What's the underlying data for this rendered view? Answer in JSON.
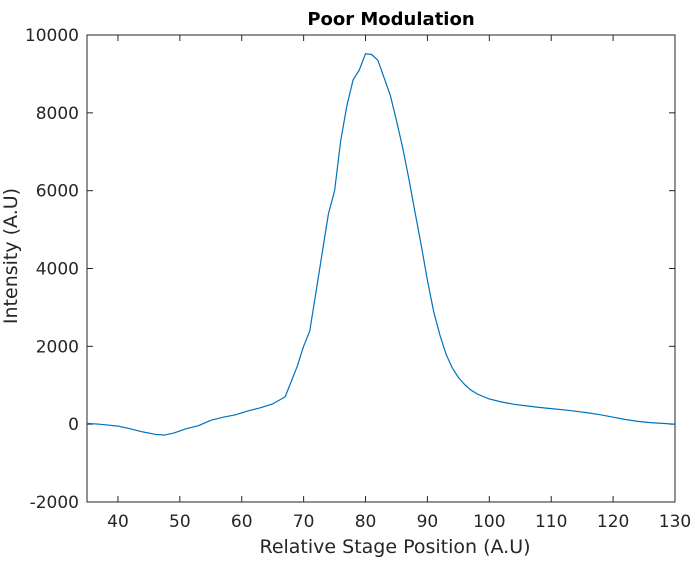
{
  "chart_data": {
    "type": "line",
    "title": "Poor Modulation",
    "xlabel": "Relative Stage Position (A.U)",
    "ylabel": "Intensity (A.U)",
    "xlim": [
      35,
      130
    ],
    "ylim": [
      -2000,
      10000
    ],
    "xticks": [
      "40",
      "50",
      "60",
      "70",
      "80",
      "90",
      "100",
      "110",
      "120",
      "130"
    ],
    "yticks": [
      "-2000",
      "0",
      "2000",
      "4000",
      "6000",
      "8000",
      "10000"
    ],
    "grid": false,
    "legend": "none",
    "series": [
      {
        "color": "#0072BD",
        "x": [
          35,
          37,
          40,
          42,
          44,
          46,
          47.5,
          49,
          51,
          53,
          55,
          57,
          59,
          61,
          63,
          65,
          67,
          68,
          69,
          70,
          71,
          72,
          73,
          74,
          75,
          76,
          77,
          78,
          79,
          80,
          81,
          82,
          83,
          84,
          85,
          86,
          87,
          88,
          89,
          90,
          91,
          92,
          93,
          94,
          95,
          96,
          97,
          98,
          99,
          100,
          102,
          104,
          106,
          108,
          110,
          112,
          114,
          116,
          118,
          120,
          122,
          124,
          126,
          128,
          130
        ],
        "y": [
          20,
          0,
          -50,
          -120,
          -200,
          -260,
          -280,
          -230,
          -120,
          -40,
          100,
          180,
          240,
          340,
          420,
          520,
          700,
          1100,
          1500,
          2000,
          2400,
          3400,
          4400,
          5400,
          6000,
          7300,
          8200,
          8850,
          9100,
          9520,
          9500,
          9350,
          8900,
          8450,
          7800,
          7100,
          6300,
          5450,
          4600,
          3700,
          2900,
          2300,
          1800,
          1450,
          1200,
          1020,
          880,
          780,
          710,
          650,
          570,
          510,
          470,
          430,
          400,
          370,
          330,
          290,
          240,
          180,
          120,
          70,
          40,
          20,
          0
        ]
      }
    ]
  }
}
